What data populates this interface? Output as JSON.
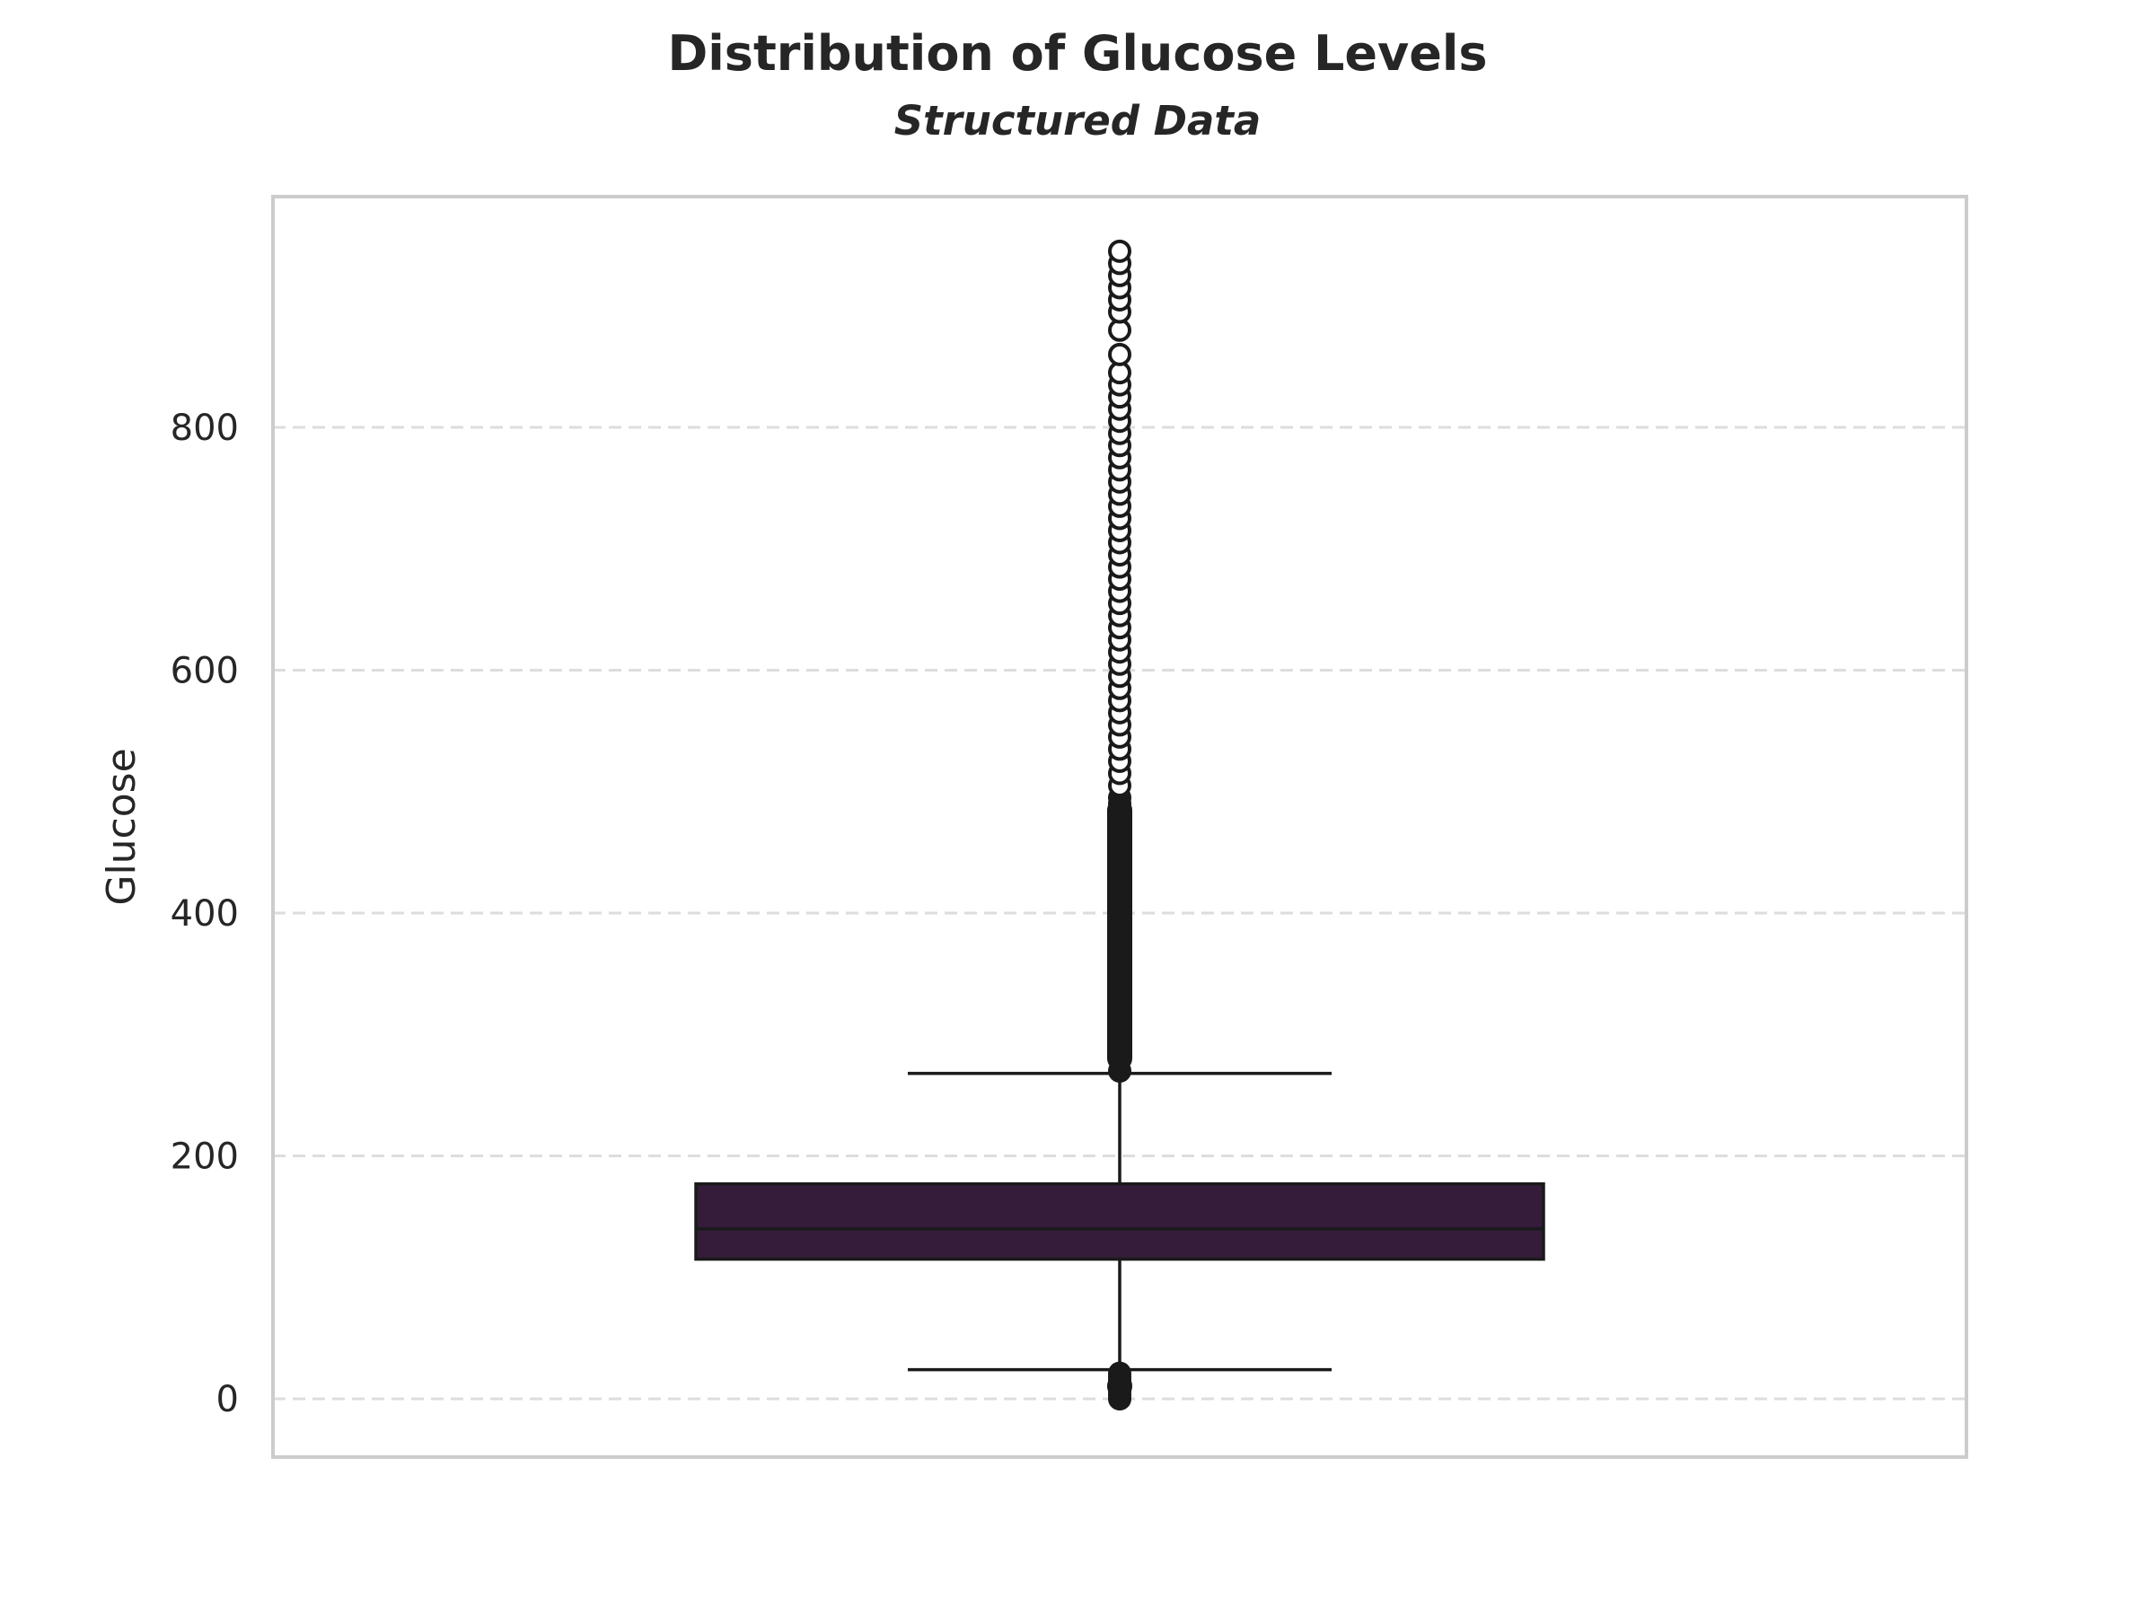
{
  "colors": {
    "box_fill": "#341c3a",
    "line": "#1a1a1a",
    "grid": "#dddddd",
    "spine": "#cccccc",
    "text": "#262626"
  },
  "chart_data": {
    "type": "box",
    "title": "Distribution of Glucose Levels",
    "subtitle": "Structured Data",
    "xlabel": "",
    "ylabel": "Glucose",
    "ylim": [
      -48,
      990
    ],
    "y_ticks": [
      0,
      200,
      400,
      600,
      800
    ],
    "grid": "y, dashed",
    "legend": "none",
    "series": [
      {
        "min_whisker": 24,
        "q1": 115,
        "median": 140,
        "q3": 177,
        "max_whisker": 268,
        "outliers_low": [
          0,
          3,
          6,
          9,
          12,
          15,
          18,
          21
        ],
        "outliers_high": [
          270,
          280,
          290,
          300,
          310,
          320,
          330,
          340,
          350,
          360,
          370,
          380,
          390,
          400,
          410,
          420,
          430,
          440,
          450,
          460,
          470,
          480,
          490,
          495,
          505,
          515,
          525,
          535,
          545,
          555,
          565,
          575,
          585,
          595,
          605,
          615,
          625,
          635,
          645,
          655,
          665,
          675,
          685,
          695,
          705,
          715,
          725,
          735,
          745,
          755,
          765,
          775,
          785,
          795,
          805,
          815,
          825,
          835,
          845,
          860,
          880,
          895,
          905,
          915,
          925,
          935,
          945
        ]
      }
    ]
  }
}
